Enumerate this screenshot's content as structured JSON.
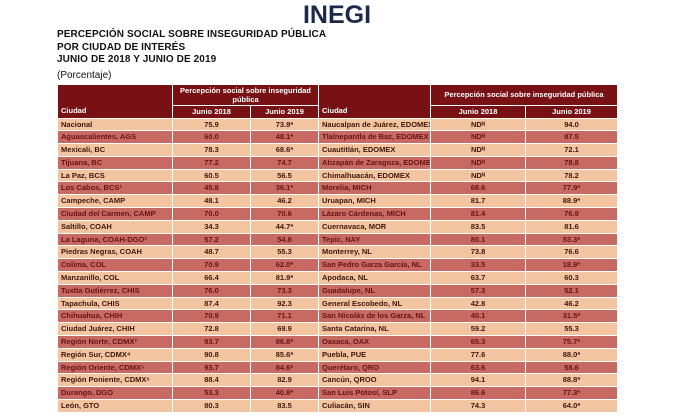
{
  "logo_text": "INEGI",
  "title_lines": [
    "PERCEPCIÓN SOCIAL SOBRE INSEGURIDAD PÚBLICA",
    "POR CIUDAD DE INTERÉS",
    "JUNIO DE 2018 Y JUNIO DE 2019"
  ],
  "unit_label": "(Porcentaje)",
  "colors": {
    "header_bg": "#771114",
    "row_light_bg": "#f2c5a0",
    "row_dark_bg": "#c66a63",
    "row_light_text": "#40150d",
    "row_dark_text": "#6b1212",
    "logo_color": "#1c2948"
  },
  "table": {
    "city_header": "Ciudad",
    "group_header": "Percepción social sobre inseguridad pública",
    "subcol_2018": "Junio 2018",
    "subcol_2019": "Junio 2019",
    "rows": [
      {
        "l_city": "Nacional",
        "l_2018": "75.9",
        "l_2019": "73.9*",
        "r_city": "Naucalpan de Juárez, EDOMEX",
        "r_2018": "NDᴺ",
        "r_2019": "94.0"
      },
      {
        "l_city": "Aguascalientes, AGS",
        "l_2018": "60.0",
        "l_2019": "48.1*",
        "r_city": "Tlalnepantla de Baz, EDOMEX",
        "r_2018": "NDᴺ",
        "r_2019": "87.5"
      },
      {
        "l_city": "Mexicali, BC",
        "l_2018": "78.3",
        "l_2019": "68.6*",
        "r_city": "Cuautitlán, EDOMEX",
        "r_2018": "NDᴺ",
        "r_2019": "72.1"
      },
      {
        "l_city": "Tijuana, BC",
        "l_2018": "77.2",
        "l_2019": "74.7",
        "r_city": "Atizapán de Zaragoza, EDOMEX",
        "r_2018": "NDᴺ",
        "r_2019": "78.8"
      },
      {
        "l_city": "La Paz, BCS",
        "l_2018": "60.5",
        "l_2019": "56.5",
        "r_city": "Chimalhuacán, EDOMEX",
        "r_2018": "NDᴺ",
        "r_2019": "78.2"
      },
      {
        "l_city": "Los Cabos, BCS¹",
        "l_2018": "45.8",
        "l_2019": "36.1*",
        "r_city": "Morelia, MICH",
        "r_2018": "68.6",
        "r_2019": "77.9*"
      },
      {
        "l_city": "Campeche, CAMP",
        "l_2018": "48.1",
        "l_2019": "46.2",
        "r_city": "Uruapan, MICH",
        "r_2018": "81.7",
        "r_2019": "88.9*"
      },
      {
        "l_city": "Ciudad del Carmen, CAMP",
        "l_2018": "70.0",
        "l_2019": "70.6",
        "r_city": "Lázaro Cárdenas, MICH",
        "r_2018": "81.4",
        "r_2019": "76.9"
      },
      {
        "l_city": "Saltillo, COAH",
        "l_2018": "34.3",
        "l_2019": "44.7*",
        "r_city": "Cuernavaca, MOR",
        "r_2018": "83.5",
        "r_2019": "81.6"
      },
      {
        "l_city": "La Laguna, COAH-DGO²",
        "l_2018": "57.2",
        "l_2019": "54.8",
        "r_city": "Tepic, NAY",
        "r_2018": "80.1",
        "r_2019": "53.3*"
      },
      {
        "l_city": "Piedras Negras, COAH",
        "l_2018": "48.7",
        "l_2019": "55.3",
        "r_city": "Monterrey, NL",
        "r_2018": "73.8",
        "r_2019": "76.6"
      },
      {
        "l_city": "Colima, COL",
        "l_2018": "70.9",
        "l_2019": "62.0*",
        "r_city": "San Pedro Garza García, NL",
        "r_2018": "33.5",
        "r_2019": "18.9*"
      },
      {
        "l_city": "Manzanillo, COL",
        "l_2018": "66.4",
        "l_2019": "81.9*",
        "r_city": "Apodaca, NL",
        "r_2018": "63.7",
        "r_2019": "60.3"
      },
      {
        "l_city": "Tuxtla Gutiérrez, CHIS",
        "l_2018": "76.0",
        "l_2019": "73.3",
        "r_city": "Guadalupe, NL",
        "r_2018": "57.3",
        "r_2019": "52.1"
      },
      {
        "l_city": "Tapachula, CHIS",
        "l_2018": "87.4",
        "l_2019": "92.3",
        "r_city": "General Escobedo, NL",
        "r_2018": "42.8",
        "r_2019": "46.2"
      },
      {
        "l_city": "Chihuahua, CHIH",
        "l_2018": "70.9",
        "l_2019": "71.1",
        "r_city": "San Nicolás de los Garza, NL",
        "r_2018": "40.1",
        "r_2019": "31.5*"
      },
      {
        "l_city": "Ciudad Juárez, CHIH",
        "l_2018": "72.8",
        "l_2019": "69.9",
        "r_city": "Santa Catarina, NL",
        "r_2018": "59.2",
        "r_2019": "55.3"
      },
      {
        "l_city": "Región Norte, CDMX³",
        "l_2018": "93.7",
        "l_2019": "86.8*",
        "r_city": "Oaxaca, OAX",
        "r_2018": "65.3",
        "r_2019": "75.7*"
      },
      {
        "l_city": "Región Sur, CDMX⁴",
        "l_2018": "90.8",
        "l_2019": "85.6*",
        "r_city": "Puebla, PUE",
        "r_2018": "77.6",
        "r_2019": "88.0*"
      },
      {
        "l_city": "Región Oriente, CDMX⁵",
        "l_2018": "93.7",
        "l_2019": "84.6*",
        "r_city": "Querétaro, QRO",
        "r_2018": "63.6",
        "r_2019": "58.6"
      },
      {
        "l_city": "Región Poniente, CDMX⁶",
        "l_2018": "88.4",
        "l_2019": "82.9",
        "r_city": "Cancún, QROO",
        "r_2018": "94.1",
        "r_2019": "88.8*"
      },
      {
        "l_city": "Durango, DGO",
        "l_2018": "53.3",
        "l_2019": "40.8*",
        "r_city": "San Luis Potosí, SLP",
        "r_2018": "86.6",
        "r_2019": "77.3*"
      },
      {
        "l_city": "León, GTO",
        "l_2018": "80.3",
        "l_2019": "83.5",
        "r_city": "Culiacán, SIN",
        "r_2018": "74.3",
        "r_2019": "64.0*"
      }
    ]
  }
}
